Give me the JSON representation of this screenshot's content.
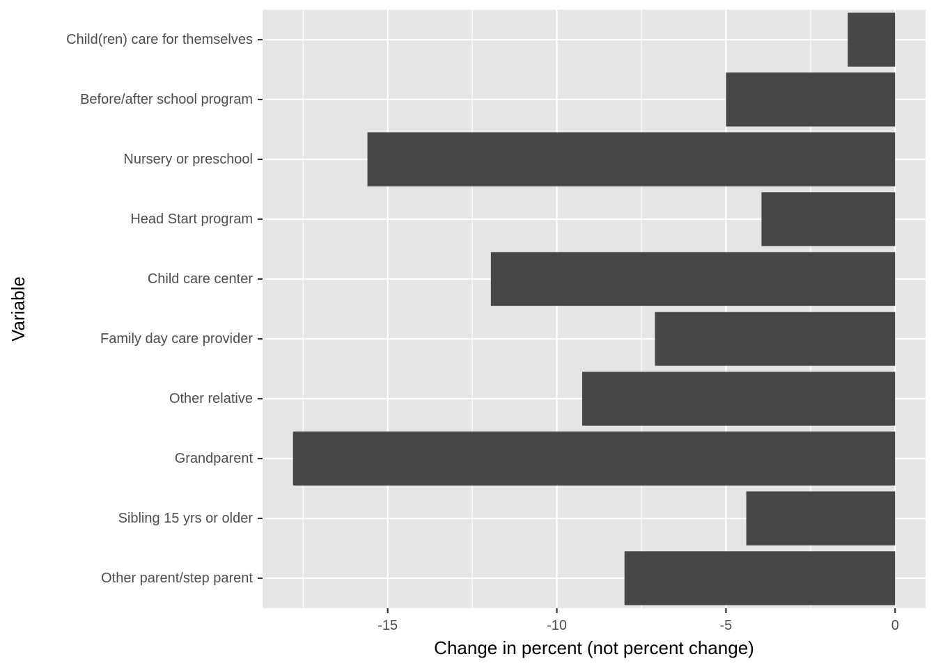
{
  "chart_data": {
    "type": "bar",
    "orientation": "horizontal",
    "categories": [
      "Child(ren) care for themselves",
      "Before/after school program",
      "Nursery or preschool",
      "Head Start program",
      "Child care center",
      "Family day care provider",
      "Other relative",
      "Grandparent",
      "Sibling 15 yrs or older",
      "Other parent/step parent"
    ],
    "values": [
      -1.4,
      -5.0,
      -15.6,
      -3.95,
      -11.95,
      -7.1,
      -9.25,
      -17.8,
      -4.4,
      -8.0
    ],
    "xlabel": "Change in percent (not percent change)",
    "ylabel": "Variable",
    "xlim": [
      -18.7,
      0.9
    ],
    "xticks": [
      -15,
      -10,
      -5,
      0
    ],
    "xtick_labels": [
      "-15",
      "-10",
      "-5",
      "0"
    ],
    "grid": true,
    "colors": {
      "panel_background": "#e5e5e5",
      "gridline": "#ffffff",
      "bar": "#474747",
      "tick_text": "#4d4d4d",
      "axis_title": "#000000"
    }
  }
}
